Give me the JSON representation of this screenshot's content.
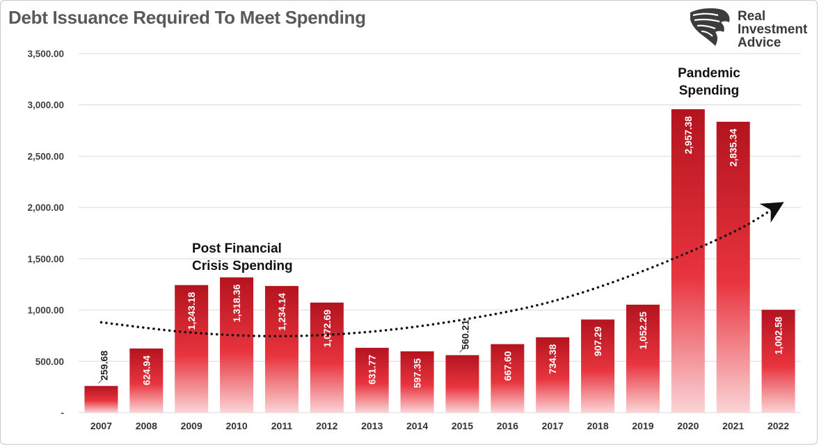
{
  "brand": {
    "name_line1": "Real",
    "name_line2": "Investment",
    "name_line3": "Advice",
    "logo_icon": "eagle-head-icon"
  },
  "chart_data": {
    "type": "bar",
    "title": "Debt Issuance Required To Meet Spending",
    "categories": [
      "2007",
      "2008",
      "2009",
      "2010",
      "2011",
      "2012",
      "2013",
      "2014",
      "2015",
      "2016",
      "2017",
      "2018",
      "2019",
      "2020",
      "2021",
      "2022"
    ],
    "values": [
      259.68,
      624.94,
      1243.18,
      1318.36,
      1234.14,
      1072.69,
      631.77,
      597.35,
      560.21,
      667.6,
      734.38,
      907.29,
      1052.25,
      2957.38,
      2835.34,
      1002.58
    ],
    "value_labels": [
      "259.68",
      "624.94",
      "1,243.18",
      "1,318.36",
      "1,234.14",
      "1,072.69",
      "631.77",
      "597.35",
      "560.21",
      "667.60",
      "734.38",
      "907.29",
      "1,052.25",
      "2,957.38",
      "2,835.34",
      "1,002.58"
    ],
    "ylim": [
      0,
      3500
    ],
    "yticks": [
      0,
      500,
      1000,
      1500,
      2000,
      2500,
      3000,
      3500
    ],
    "ytick_labels": [
      "-",
      "500.00",
      "1,000.00",
      "1,500.00",
      "2,000.00",
      "2,500.00",
      "3,000.00",
      "3,500.00"
    ],
    "grid": true,
    "legend": "none",
    "colors": {
      "bar_top": "#b3141f",
      "bar_mid": "#e8343e",
      "bar_bottom": "#fbd4d6",
      "grid": "#d9d9d9",
      "trend": "#111111"
    },
    "trendline": {
      "style": "dotted",
      "arrow": true,
      "x": [
        "2007",
        "2009",
        "2011",
        "2013",
        "2015",
        "2017",
        "2019",
        "2021",
        "2022"
      ],
      "y": [
        880,
        780,
        745,
        790,
        905,
        1085,
        1380,
        1760,
        2020
      ]
    },
    "annotations": [
      {
        "id": "post-financial",
        "lines": [
          "Post Financial",
          "Crisis Spending"
        ]
      },
      {
        "id": "pandemic",
        "lines": [
          "Pandemic",
          "Spending"
        ]
      }
    ]
  }
}
